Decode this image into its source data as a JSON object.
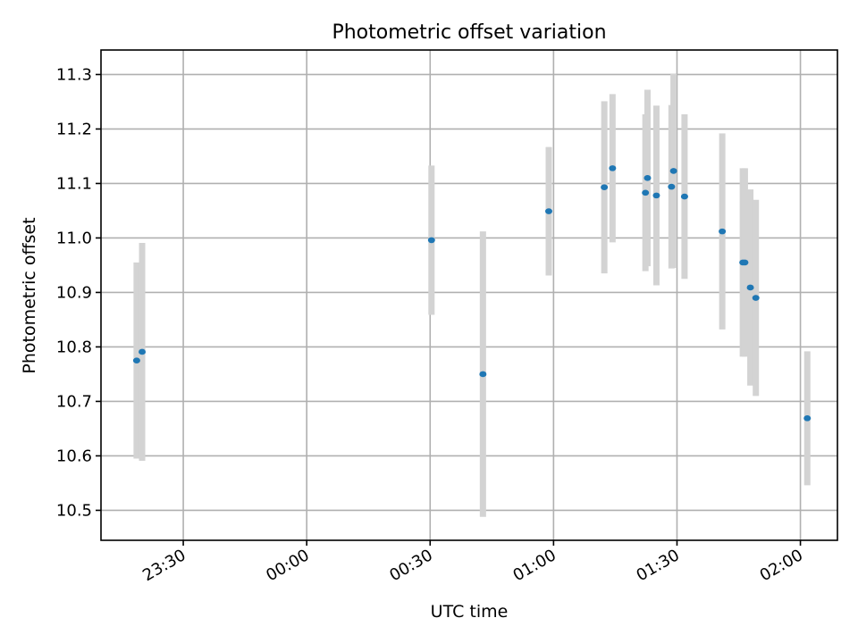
{
  "chart_data": {
    "type": "scatter",
    "title": "Photometric offset variation",
    "xlabel": "UTC time",
    "ylabel": "Photometric offset",
    "x_is_time": true,
    "xlim": [
      "23:10",
      "02:09"
    ],
    "ylim": [
      10.445,
      11.345
    ],
    "x_ticks": [
      {
        "value": "23:30",
        "label": "23:30"
      },
      {
        "value": "00:00",
        "label": "00:00"
      },
      {
        "value": "00:30",
        "label": "00:30"
      },
      {
        "value": "01:00",
        "label": "01:00"
      },
      {
        "value": "01:30",
        "label": "01:30"
      },
      {
        "value": "02:00",
        "label": "02:00"
      }
    ],
    "y_ticks": [
      10.5,
      10.6,
      10.7,
      10.8,
      10.9,
      11.0,
      11.1,
      11.2,
      11.3
    ],
    "y_tick_labels": [
      "10.5",
      "10.6",
      "10.7",
      "10.8",
      "10.9",
      "11.0",
      "11.1",
      "11.2",
      "11.3"
    ],
    "grid": true,
    "point_color": "#1f77b4",
    "errorbar_color": "#d3d3d3",
    "series": [
      {
        "points": [
          {
            "x": "23:18:40",
            "y": 10.775,
            "err": 0.18
          },
          {
            "x": "23:20:00",
            "y": 10.791,
            "err": 0.2
          },
          {
            "x": "00:30:20",
            "y": 10.996,
            "err": 0.137
          },
          {
            "x": "00:42:50",
            "y": 10.75,
            "err": 0.262
          },
          {
            "x": "00:58:50",
            "y": 11.049,
            "err": 0.118
          },
          {
            "x": "01:12:20",
            "y": 11.093,
            "err": 0.158
          },
          {
            "x": "01:14:20",
            "y": 11.128,
            "err": 0.136
          },
          {
            "x": "01:22:20",
            "y": 11.083,
            "err": 0.144
          },
          {
            "x": "01:22:50",
            "y": 11.11,
            "err": 0.162
          },
          {
            "x": "01:25:00",
            "y": 11.078,
            "err": 0.165
          },
          {
            "x": "01:28:40",
            "y": 11.094,
            "err": 0.15
          },
          {
            "x": "01:29:10",
            "y": 11.123,
            "err": 0.178
          },
          {
            "x": "01:31:50",
            "y": 11.076,
            "err": 0.151
          },
          {
            "x": "01:41:00",
            "y": 11.012,
            "err": 0.18
          },
          {
            "x": "01:46:00",
            "y": 10.955,
            "err": 0.173
          },
          {
            "x": "01:46:30",
            "y": 10.955,
            "err": 0.173
          },
          {
            "x": "01:47:50",
            "y": 10.909,
            "err": 0.18
          },
          {
            "x": "01:49:10",
            "y": 10.89,
            "err": 0.18
          },
          {
            "x": "02:01:40",
            "y": 10.669,
            "err": 0.123
          }
        ]
      }
    ]
  }
}
